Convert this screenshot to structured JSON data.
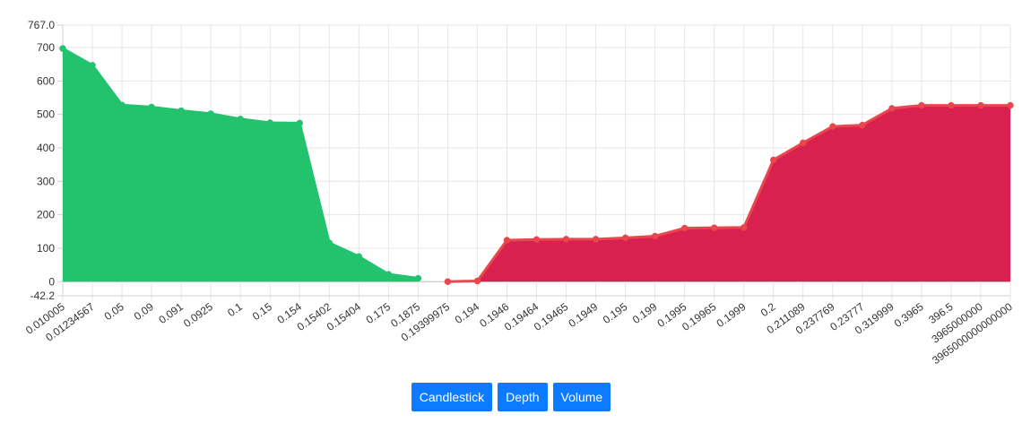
{
  "chart_data": {
    "type": "area",
    "y_axis": {
      "min": -42.2,
      "max": 767.0,
      "ticks": [
        -42.2,
        0,
        100,
        200,
        300,
        400,
        500,
        600,
        700,
        767.0
      ]
    },
    "y_tick_labels": [
      "-42.2",
      "0",
      "100",
      "200",
      "300",
      "400",
      "500",
      "600",
      "700",
      "767.0"
    ],
    "grid": true,
    "categories": [
      "0.010005",
      "0.01234567",
      "0.05",
      "0.09",
      "0.091",
      "0.0925",
      "0.1",
      "0.15",
      "0.154",
      "0.15402",
      "0.15404",
      "0.175",
      "0.1875",
      "0.19399975",
      "0.194",
      "0.1946",
      "0.19464",
      "0.19465",
      "0.1949",
      "0.195",
      "0.199",
      "0.1995",
      "0.19965",
      "0.1999",
      "0.2",
      "0.211089",
      "0.237769",
      "0.23777",
      "0.319999",
      "0.3965",
      "396.5",
      "3965000000",
      "3965000000000000"
    ],
    "series": [
      {
        "color": "#23c36e",
        "fill": "#23c36e",
        "values": [
          697,
          647,
          528,
          522,
          511,
          502,
          486,
          475,
          474,
          116,
          75,
          22,
          10,
          null,
          null,
          null,
          null,
          null,
          null,
          null,
          null,
          null,
          null,
          null,
          null,
          null,
          null,
          null,
          null,
          null,
          null,
          null,
          null
        ]
      },
      {
        "color": "#e8474e",
        "fill": "#d8214f",
        "values": [
          null,
          null,
          null,
          null,
          null,
          null,
          null,
          null,
          null,
          null,
          null,
          null,
          null,
          0,
          2,
          124,
          126,
          127,
          127,
          131,
          136,
          160,
          161,
          162,
          364,
          415,
          464,
          468,
          518,
          527,
          527,
          527,
          527
        ]
      }
    ]
  },
  "buttons": {
    "candlestick": "Candlestick",
    "depth": "Depth",
    "volume": "Volume"
  }
}
